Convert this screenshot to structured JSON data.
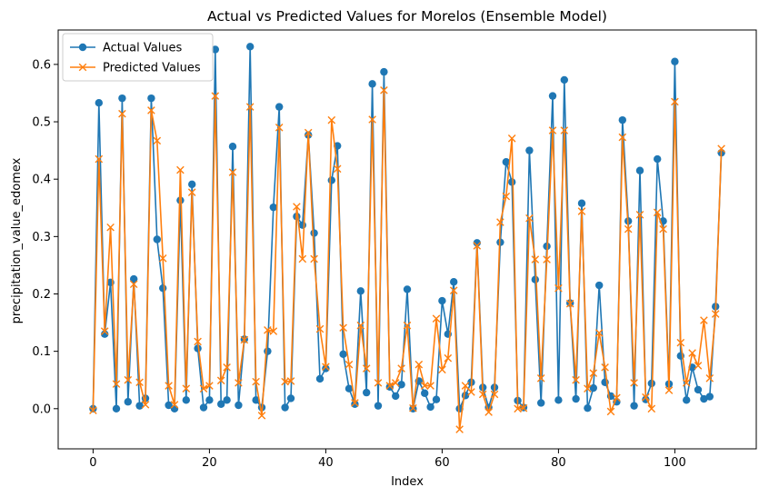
{
  "chart_data": {
    "type": "line",
    "title": "Actual vs Predicted Values for Morelos (Ensemble Model)",
    "xlabel": "Index",
    "ylabel": "precipitation_value_edomex",
    "xlim": [
      -6,
      114
    ],
    "ylim": [
      -0.07,
      0.66
    ],
    "xticks": [
      0,
      20,
      40,
      60,
      80,
      100
    ],
    "yticks": [
      0.0,
      0.1,
      0.2,
      0.3,
      0.4,
      0.5,
      0.6
    ],
    "ytick_labels": [
      "0.0",
      "0.1",
      "0.2",
      "0.3",
      "0.4",
      "0.5",
      "0.6"
    ],
    "grid": false,
    "legend_position": "top-left",
    "series": [
      {
        "name": "Actual Values",
        "color": "#1f77b4",
        "marker": "circle",
        "values": [
          0.0,
          0.533,
          0.13,
          0.22,
          0.0,
          0.541,
          0.012,
          0.226,
          0.005,
          0.018,
          0.541,
          0.295,
          0.21,
          0.006,
          0.0,
          0.363,
          0.015,
          0.391,
          0.105,
          0.002,
          0.015,
          0.626,
          0.008,
          0.015,
          0.457,
          0.006,
          0.121,
          0.631,
          0.015,
          0.002,
          0.1,
          0.351,
          0.526,
          0.002,
          0.018,
          0.335,
          0.32,
          0.477,
          0.306,
          0.052,
          0.07,
          0.398,
          0.458,
          0.095,
          0.035,
          0.008,
          0.205,
          0.028,
          0.566,
          0.005,
          0.587,
          0.038,
          0.022,
          0.042,
          0.208,
          0.0,
          0.048,
          0.027,
          0.003,
          0.016,
          0.188,
          0.13,
          0.221,
          0.0,
          0.023,
          0.046,
          0.289,
          0.037,
          0.002,
          0.037,
          0.29,
          0.43,
          0.395,
          0.014,
          0.002,
          0.45,
          0.225,
          0.01,
          0.283,
          0.545,
          0.015,
          0.573,
          0.184,
          0.017,
          0.358,
          0.001,
          0.036,
          0.215,
          0.046,
          0.022,
          0.012,
          0.503,
          0.327,
          0.005,
          0.415,
          0.016,
          0.044,
          0.435,
          0.327,
          0.043,
          0.605,
          0.092,
          0.015,
          0.072,
          0.033,
          0.017,
          0.021,
          0.178,
          0.446
        ]
      },
      {
        "name": "Predicted Values",
        "color": "#ff7f0e",
        "marker": "x",
        "values": [
          -0.003,
          0.435,
          0.135,
          0.316,
          0.043,
          0.514,
          0.05,
          0.217,
          0.046,
          0.007,
          0.52,
          0.467,
          0.262,
          0.04,
          0.007,
          0.416,
          0.035,
          0.377,
          0.117,
          0.035,
          0.04,
          0.545,
          0.049,
          0.072,
          0.412,
          0.045,
          0.12,
          0.526,
          0.047,
          -0.012,
          0.137,
          0.135,
          0.49,
          0.047,
          0.048,
          0.352,
          0.261,
          0.481,
          0.261,
          0.139,
          0.073,
          0.503,
          0.418,
          0.141,
          0.077,
          0.01,
          0.145,
          0.07,
          0.504,
          0.045,
          0.555,
          0.04,
          0.045,
          0.07,
          0.145,
          0.001,
          0.077,
          0.04,
          0.04,
          0.157,
          0.068,
          0.088,
          0.206,
          -0.036,
          0.04,
          0.029,
          0.284,
          0.025,
          -0.006,
          0.025,
          0.325,
          0.37,
          0.471,
          0.0,
          0.001,
          0.332,
          0.26,
          0.053,
          0.26,
          0.485,
          0.21,
          0.485,
          0.183,
          0.05,
          0.344,
          0.035,
          0.062,
          0.132,
          0.072,
          -0.005,
          0.019,
          0.473,
          0.313,
          0.045,
          0.338,
          0.02,
          0.0,
          0.342,
          0.313,
          0.032,
          0.535,
          0.115,
          0.045,
          0.097,
          0.075,
          0.154,
          0.053,
          0.165,
          0.453
        ]
      }
    ]
  }
}
